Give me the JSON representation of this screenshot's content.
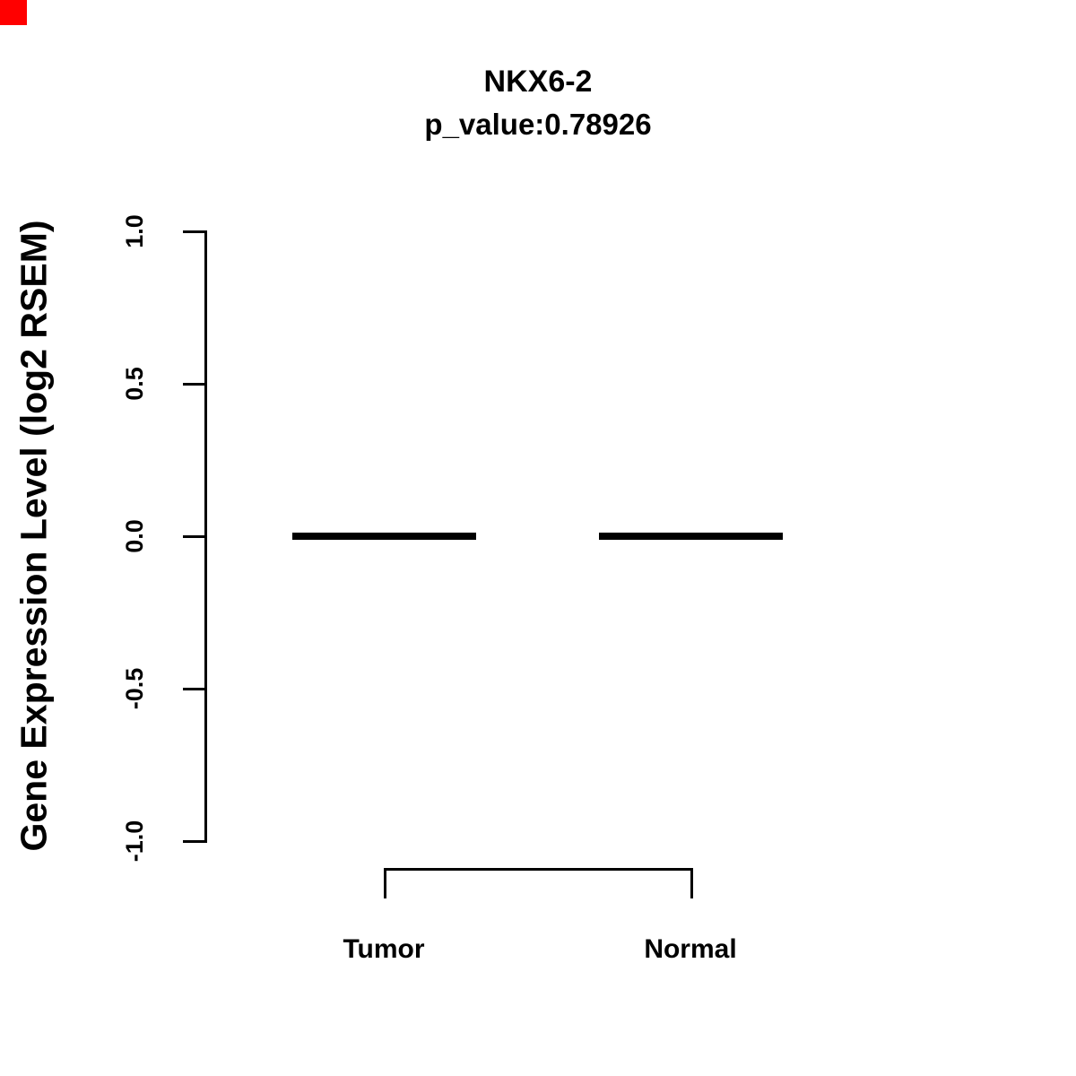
{
  "corner_marker": {
    "color": "#FF0000"
  },
  "chart_data": {
    "type": "boxplot",
    "title": "NKX6-2",
    "subtitle": "p_value:0.78926",
    "ylabel": "Gene Expression Level (log2 RSEM)",
    "xlabel": "",
    "ylim": [
      -1.0,
      1.0
    ],
    "yticks": [
      -1.0,
      -0.5,
      0.0,
      0.5,
      1.0
    ],
    "ytick_labels": [
      "-1.0",
      "-0.5",
      "0.0",
      "0.5",
      "1.0"
    ],
    "categories": [
      "Tumor",
      "Normal"
    ],
    "groups": [
      {
        "label": "Tumor",
        "median": 0.0,
        "q1": 0.0,
        "q3": 0.0,
        "whisker_low": 0.0,
        "whisker_high": 0.0
      },
      {
        "label": "Normal",
        "median": 0.0,
        "q1": 0.0,
        "q3": 0.0,
        "whisker_low": 0.0,
        "whisker_high": 0.0
      }
    ],
    "grid": false,
    "legend": false,
    "annotations": [
      {
        "type": "bracket",
        "from_category": "Tumor",
        "to_category": "Normal"
      }
    ]
  }
}
